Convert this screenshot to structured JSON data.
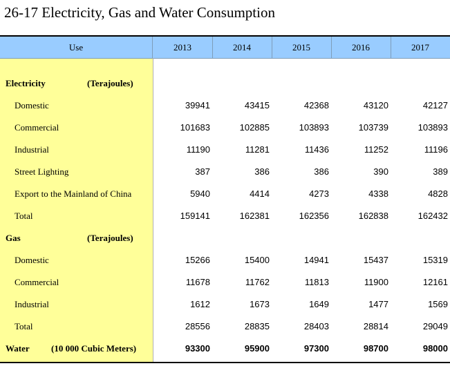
{
  "title": "26-17  Electricity, Gas and Water Consumption",
  "header": {
    "use": "Use",
    "years": [
      "2013",
      "2014",
      "2015",
      "2016",
      "2017"
    ]
  },
  "rows": [
    {
      "type": "section",
      "label": "Electricity",
      "unit": "(Terajoules)",
      "values": []
    },
    {
      "type": "item",
      "label": "Domestic",
      "values": [
        "39941",
        "43415",
        "42368",
        "43120",
        "42127"
      ]
    },
    {
      "type": "item",
      "label": "Commercial",
      "values": [
        "101683",
        "102885",
        "103893",
        "103739",
        "103893"
      ]
    },
    {
      "type": "item",
      "label": "Industrial",
      "values": [
        "11190",
        "11281",
        "11436",
        "11252",
        "11196"
      ]
    },
    {
      "type": "item",
      "label": "Street Lighting",
      "values": [
        "387",
        "386",
        "386",
        "390",
        "389"
      ]
    },
    {
      "type": "item",
      "label": "Export to the Mainland of China",
      "values": [
        "5940",
        "4414",
        "4273",
        "4338",
        "4828"
      ]
    },
    {
      "type": "item",
      "label": "Total",
      "values": [
        "159141",
        "162381",
        "162356",
        "162838",
        "162432"
      ]
    },
    {
      "type": "section",
      "label": "Gas",
      "unit": "(Terajoules)",
      "values": []
    },
    {
      "type": "item",
      "label": "Domestic",
      "values": [
        "15266",
        "15400",
        "14941",
        "15437",
        "15319"
      ]
    },
    {
      "type": "item",
      "label": "Commercial",
      "values": [
        "11678",
        "11762",
        "11813",
        "11900",
        "12161"
      ]
    },
    {
      "type": "item",
      "label": "Industrial",
      "values": [
        "1612",
        "1673",
        "1649",
        "1477",
        "1569"
      ]
    },
    {
      "type": "item",
      "label": "Total",
      "values": [
        "28556",
        "28835",
        "28403",
        "28814",
        "29049"
      ]
    },
    {
      "type": "water",
      "label": "Water",
      "unit": "(10 000 Cubic Meters)",
      "values": [
        "93300",
        "95900",
        "97300",
        "98700",
        "98000"
      ]
    }
  ]
}
